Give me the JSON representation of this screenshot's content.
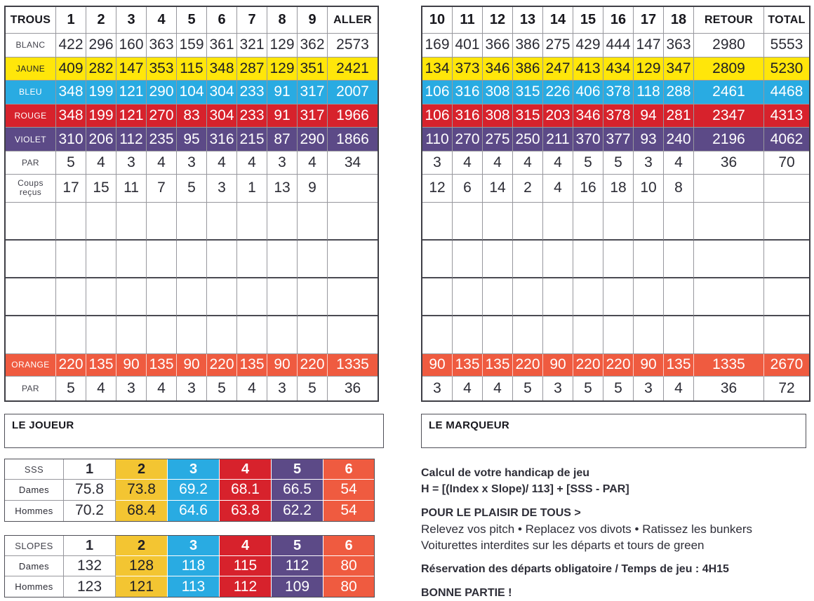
{
  "colors": {
    "yellow": "#FFE60A",
    "blue": "#29ABE2",
    "red": "#D7222C",
    "violet": "#5C4A87",
    "orange": "#EF5B40",
    "gold": "#F3C532"
  },
  "front_nine": {
    "header": [
      "TROUS",
      "1",
      "2",
      "3",
      "4",
      "5",
      "6",
      "7",
      "8",
      "9",
      "ALLER"
    ],
    "rows": [
      {
        "label": "BLANC",
        "style": "white",
        "values": [
          "422",
          "296",
          "160",
          "363",
          "159",
          "361",
          "321",
          "129",
          "362"
        ],
        "total": "2573"
      },
      {
        "label": "JAUNE",
        "style": "yellow",
        "values": [
          "409",
          "282",
          "147",
          "353",
          "115",
          "348",
          "287",
          "129",
          "351"
        ],
        "total": "2421"
      },
      {
        "label": "BLEU",
        "style": "blue",
        "values": [
          "348",
          "199",
          "121",
          "290",
          "104",
          "304",
          "233",
          "91",
          "317"
        ],
        "total": "2007"
      },
      {
        "label": "ROUGE",
        "style": "red",
        "values": [
          "348",
          "199",
          "121",
          "270",
          "83",
          "304",
          "233",
          "91",
          "317"
        ],
        "total": "1966"
      },
      {
        "label": "VIOLET",
        "style": "violet",
        "values": [
          "310",
          "206",
          "112",
          "235",
          "95",
          "316",
          "215",
          "87",
          "290"
        ],
        "total": "1866"
      },
      {
        "label": "PAR",
        "style": "par",
        "values": [
          "5",
          "4",
          "3",
          "4",
          "3",
          "4",
          "4",
          "3",
          "4"
        ],
        "total": "34"
      },
      {
        "label": "Coups reçus",
        "style": "coups",
        "values": [
          "17",
          "15",
          "11",
          "7",
          "5",
          "3",
          "1",
          "13",
          "9"
        ],
        "total": ""
      },
      {
        "label": "",
        "style": "empty",
        "values": [
          "",
          "",
          "",
          "",
          "",
          "",
          "",
          "",
          ""
        ],
        "total": ""
      },
      {
        "label": "",
        "style": "empty",
        "values": [
          "",
          "",
          "",
          "",
          "",
          "",
          "",
          "",
          ""
        ],
        "total": ""
      },
      {
        "label": "",
        "style": "empty",
        "values": [
          "",
          "",
          "",
          "",
          "",
          "",
          "",
          "",
          ""
        ],
        "total": ""
      },
      {
        "label": "",
        "style": "empty",
        "values": [
          "",
          "",
          "",
          "",
          "",
          "",
          "",
          "",
          ""
        ],
        "total": ""
      },
      {
        "label": "ORANGE",
        "style": "orange",
        "values": [
          "220",
          "135",
          "90",
          "135",
          "90",
          "220",
          "135",
          "90",
          "220"
        ],
        "total": "1335"
      },
      {
        "label": "PAR",
        "style": "par",
        "values": [
          "5",
          "4",
          "3",
          "4",
          "3",
          "5",
          "4",
          "3",
          "5"
        ],
        "total": "36"
      }
    ]
  },
  "back_nine": {
    "header": [
      "10",
      "11",
      "12",
      "13",
      "14",
      "15",
      "16",
      "17",
      "18",
      "RETOUR",
      "TOTAL"
    ],
    "rows": [
      {
        "style": "white",
        "values": [
          "169",
          "401",
          "366",
          "386",
          "275",
          "429",
          "444",
          "147",
          "363"
        ],
        "retour": "2980",
        "total": "5553"
      },
      {
        "style": "yellow",
        "values": [
          "134",
          "373",
          "346",
          "386",
          "247",
          "413",
          "434",
          "129",
          "347"
        ],
        "retour": "2809",
        "total": "5230"
      },
      {
        "style": "blue",
        "values": [
          "106",
          "316",
          "308",
          "315",
          "226",
          "406",
          "378",
          "118",
          "288"
        ],
        "retour": "2461",
        "total": "4468"
      },
      {
        "style": "red",
        "values": [
          "106",
          "316",
          "308",
          "315",
          "203",
          "346",
          "378",
          "94",
          "281"
        ],
        "retour": "2347",
        "total": "4313"
      },
      {
        "style": "violet",
        "values": [
          "110",
          "270",
          "275",
          "250",
          "211",
          "370",
          "377",
          "93",
          "240"
        ],
        "retour": "2196",
        "total": "4062"
      },
      {
        "style": "par",
        "values": [
          "3",
          "4",
          "4",
          "4",
          "4",
          "5",
          "5",
          "3",
          "4"
        ],
        "retour": "36",
        "total": "70"
      },
      {
        "style": "coups",
        "values": [
          "12",
          "6",
          "14",
          "2",
          "4",
          "16",
          "18",
          "10",
          "8"
        ],
        "retour": "",
        "total": ""
      },
      {
        "style": "empty",
        "values": [
          "",
          "",
          "",
          "",
          "",
          "",
          "",
          "",
          ""
        ],
        "retour": "",
        "total": ""
      },
      {
        "style": "empty",
        "values": [
          "",
          "",
          "",
          "",
          "",
          "",
          "",
          "",
          ""
        ],
        "retour": "",
        "total": ""
      },
      {
        "style": "empty",
        "values": [
          "",
          "",
          "",
          "",
          "",
          "",
          "",
          "",
          ""
        ],
        "retour": "",
        "total": ""
      },
      {
        "style": "empty",
        "values": [
          "",
          "",
          "",
          "",
          "",
          "",
          "",
          "",
          ""
        ],
        "retour": "",
        "total": ""
      },
      {
        "style": "orange",
        "values": [
          "90",
          "135",
          "135",
          "220",
          "90",
          "220",
          "220",
          "90",
          "135"
        ],
        "retour": "1335",
        "total": "2670"
      },
      {
        "style": "par",
        "values": [
          "3",
          "4",
          "4",
          "5",
          "3",
          "5",
          "5",
          "3",
          "4"
        ],
        "retour": "36",
        "total": "72"
      }
    ]
  },
  "player_box": {
    "label": "LE JOUEUR"
  },
  "marker_box": {
    "label": "LE MARQUEUR"
  },
  "sss_table": {
    "header": [
      "SSS",
      "1",
      "2",
      "3",
      "4",
      "5",
      "6"
    ],
    "rows": [
      {
        "label": "Dames",
        "values": [
          "75.8",
          "73.8",
          "69.2",
          "68.1",
          "66.5",
          "54"
        ]
      },
      {
        "label": "Hommes",
        "values": [
          "70.2",
          "68.4",
          "64.6",
          "63.8",
          "62.2",
          "54"
        ]
      }
    ]
  },
  "slopes_table": {
    "header": [
      "SLOPES",
      "1",
      "2",
      "3",
      "4",
      "5",
      "6"
    ],
    "rows": [
      {
        "label": "Dames",
        "values": [
          "132",
          "128",
          "118",
          "115",
          "112",
          "80"
        ]
      },
      {
        "label": "Hommes",
        "values": [
          "123",
          "121",
          "113",
          "112",
          "109",
          "80"
        ]
      }
    ]
  },
  "info": {
    "handicap_title": "Calcul de votre handicap de jeu",
    "handicap_formula": "H = [(Index x Slope)/ 113] + [SSS - PAR]",
    "etiquette_title": "POUR LE PLAISIR DE TOUS >",
    "etiquette_line1": "Relevez vos pitch • Replacez vos divots • Ratissez les bunkers",
    "etiquette_line2": "Voiturettes interdites sur les départs et tours de green",
    "reservation": "Réservation des départs obligatoire / Temps de jeu : 4H15",
    "closing": "BONNE PARTIE !"
  }
}
